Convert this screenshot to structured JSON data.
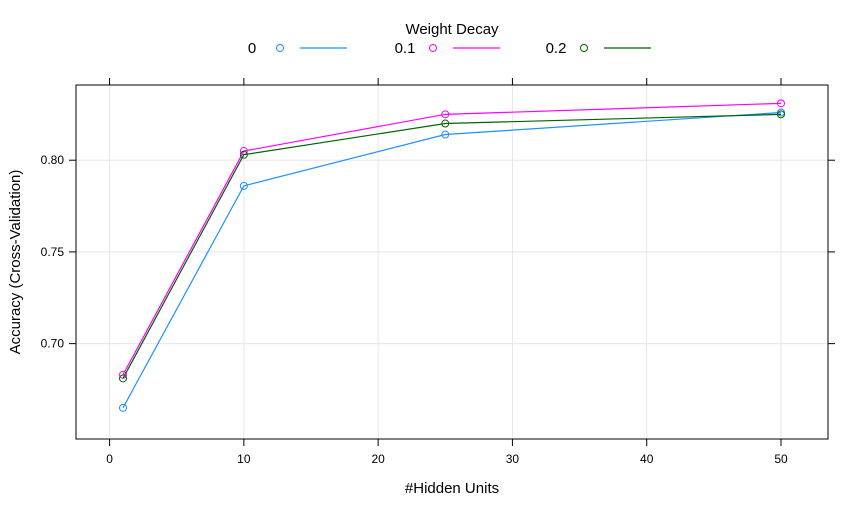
{
  "chart_data": {
    "type": "line",
    "title": "",
    "xlabel": "#Hidden Units",
    "ylabel": "Accuracy (Cross-Validation)",
    "legend": {
      "title": "Weight Decay",
      "placement": "top",
      "markers": "circle-and-line"
    },
    "x": [
      1,
      10,
      25,
      50
    ],
    "series": [
      {
        "name": "0",
        "color": "#1e90ff",
        "values": [
          0.665,
          0.786,
          0.814,
          0.826
        ]
      },
      {
        "name": "0.1",
        "color": "#ff00ff",
        "values": [
          0.683,
          0.805,
          0.825,
          0.831
        ]
      },
      {
        "name": "0.2",
        "color": "#006400",
        "values": [
          0.681,
          0.803,
          0.82,
          0.825
        ]
      }
    ],
    "xlim": [
      -2.5,
      53.5
    ],
    "ylim": [
      0.648,
      0.841
    ],
    "xticks": [
      0,
      10,
      20,
      30,
      40,
      50
    ],
    "yticks": [
      0.7,
      0.75,
      0.8
    ],
    "ytick_labels": [
      "0.70",
      "0.75",
      "0.80"
    ],
    "grid": true,
    "grid_color": "#e6e6e6"
  }
}
